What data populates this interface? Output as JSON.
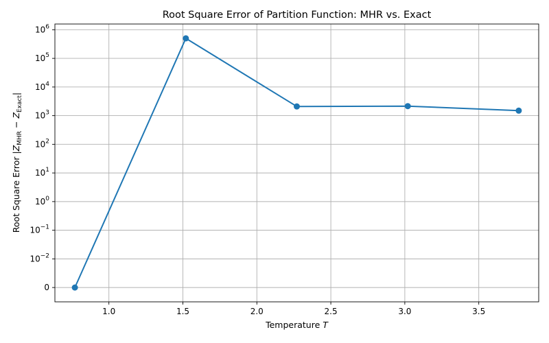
{
  "chart_data": {
    "type": "line",
    "title": "Root Square Error of Partition Function: MHR vs. Exact",
    "xlabel": "Temperature T",
    "ylabel": "Root Square Error |Z_MHR − Z_Exact|",
    "x": [
      0.77,
      1.52,
      2.27,
      3.02,
      3.77
    ],
    "series": [
      {
        "values": [
          0,
          500000,
          2100,
          2150,
          1500
        ]
      }
    ],
    "xlim": [
      0.635,
      3.905
    ],
    "ylim_exponents": [
      -3.5,
      6.2
    ],
    "y_scale": "symlog",
    "x_ticks": [
      1.0,
      1.5,
      2.0,
      2.5,
      3.0,
      3.5
    ],
    "x_tick_labels": [
      "1.0",
      "1.5",
      "2.0",
      "2.5",
      "3.0",
      "3.5"
    ],
    "y_ticks": [
      "0",
      "1e-2",
      "1e-1",
      "1e0",
      "1e1",
      "1e2",
      "1e3",
      "1e4",
      "1e5",
      "1e6"
    ],
    "y_tick_bases": [
      "0",
      "10",
      "10",
      "10",
      "10",
      "10",
      "10",
      "10",
      "10",
      "10"
    ],
    "y_tick_exponents": [
      "",
      "−2",
      "−1",
      "0",
      "1",
      "2",
      "3",
      "4",
      "5",
      "6"
    ],
    "grid": true,
    "color": "#1f77b4"
  }
}
